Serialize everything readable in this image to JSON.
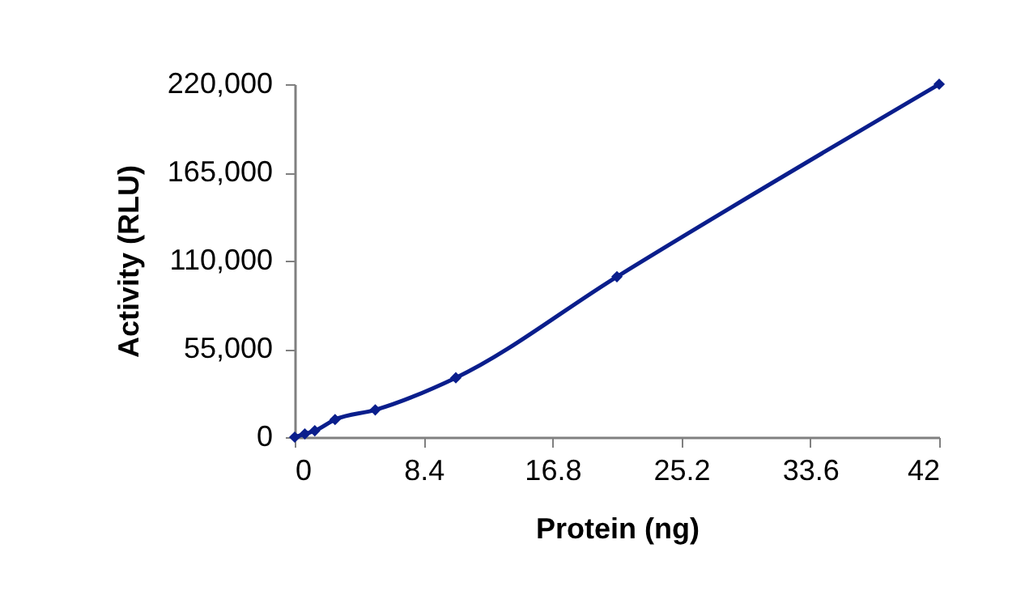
{
  "chart_data": {
    "type": "line",
    "xlabel": "Protein (ng)",
    "ylabel": "Activity (RLU)",
    "x": [
      0,
      0.66,
      1.31,
      2.63,
      5.25,
      10.5,
      21,
      42
    ],
    "series": [
      {
        "color": "#0a1e8c",
        "values": [
          0,
          2000,
          4000,
          11000,
          17000,
          37000,
          100000,
          220000
        ]
      }
    ],
    "xlim": [
      0,
      42
    ],
    "xticks": [
      0,
      8.4,
      16.8,
      25.2,
      33.6,
      42
    ],
    "ylim": [
      0,
      220000
    ],
    "yticks": [
      0,
      {
        "value": 55000,
        "label": "55,000"
      },
      {
        "value": 110000,
        "label": "110,000"
      },
      {
        "value": 165000,
        "label": "165,000"
      },
      {
        "value": 220000,
        "label": "220,000"
      }
    ],
    "grid": false,
    "marker": "diamond",
    "line_style": "solid"
  }
}
